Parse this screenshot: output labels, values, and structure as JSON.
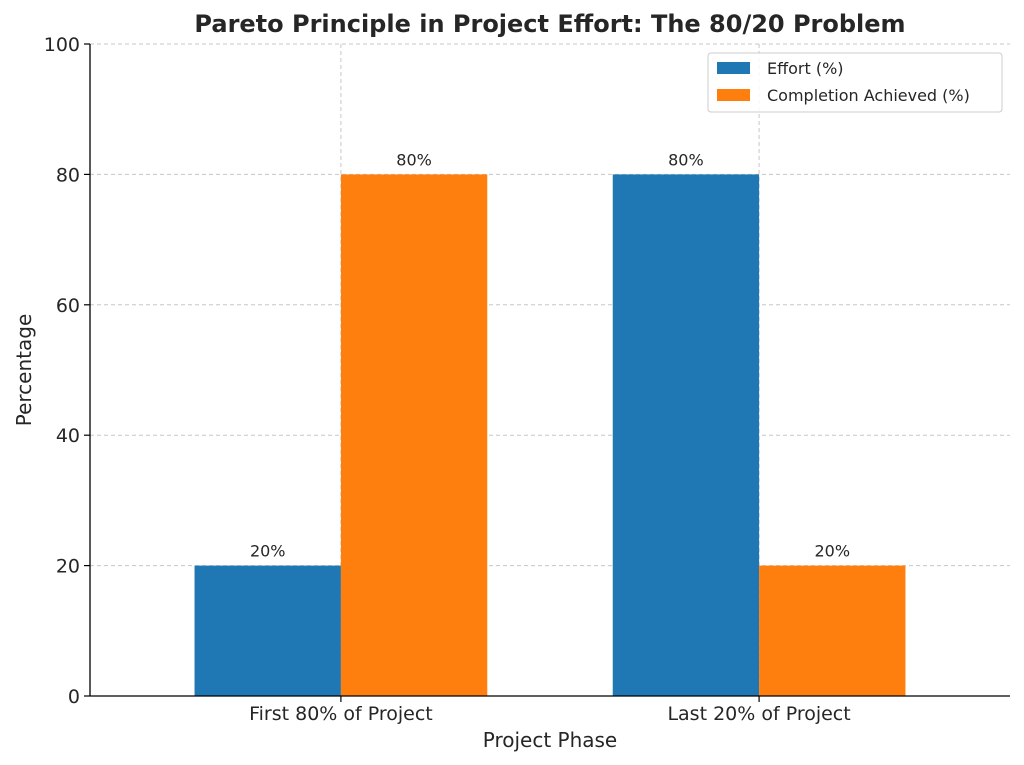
{
  "chart_data": {
    "type": "bar",
    "title": "Pareto Principle in Project Effort: The 80/20 Problem",
    "xlabel": "Project Phase",
    "ylabel": "Percentage",
    "categories": [
      "First 80% of Project",
      "Last 20% of Project"
    ],
    "series": [
      {
        "name": "Effort (%)",
        "values": [
          20,
          80
        ],
        "labels": [
          "20%",
          "80%"
        ],
        "color": "#1f77b4"
      },
      {
        "name": "Completion Achieved (%)",
        "values": [
          80,
          20
        ],
        "labels": [
          "80%",
          "20%"
        ],
        "color": "#ff7f0e"
      }
    ],
    "ylim": [
      0,
      100
    ],
    "yticks": [
      0,
      20,
      40,
      60,
      80,
      100
    ],
    "grid": true,
    "legend_position": "top-right"
  }
}
